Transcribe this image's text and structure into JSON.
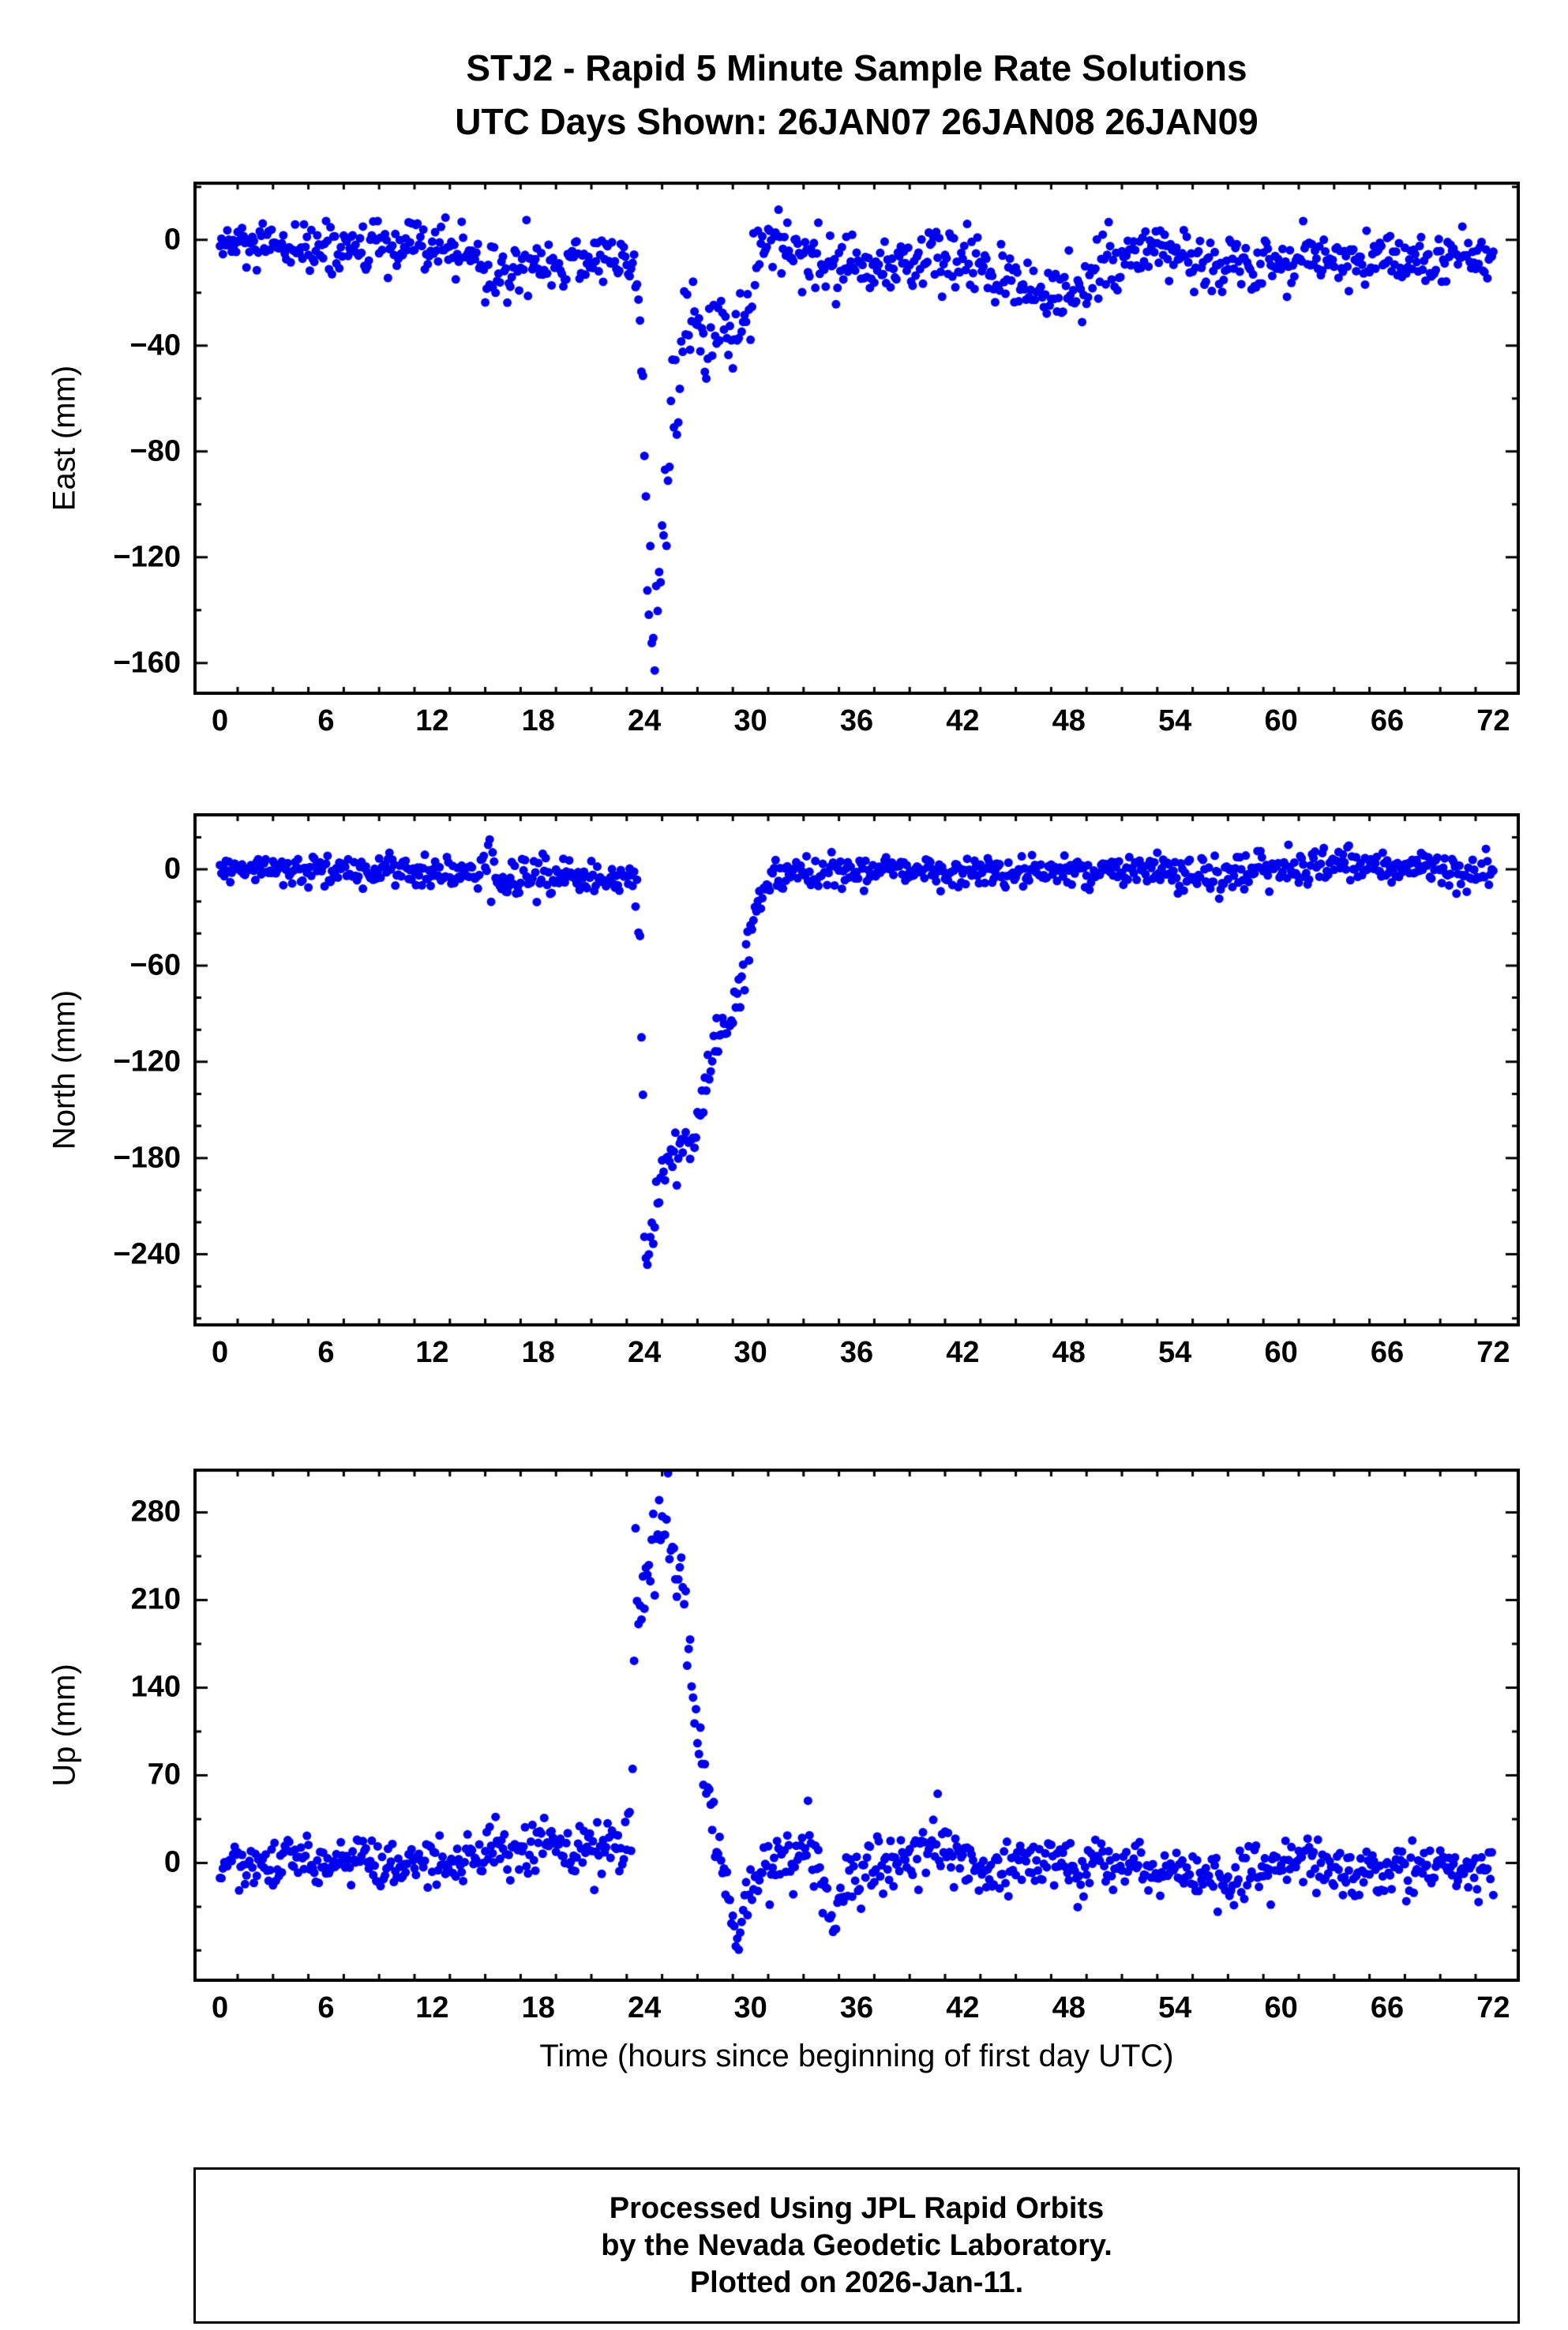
{
  "title": {
    "line1": "STJ2 - Rapid 5 Minute Sample Rate Solutions",
    "line2": "UTC Days Shown:  26JAN07 26JAN08 26JAN09"
  },
  "footer": {
    "line1": "Processed Using JPL Rapid Orbits",
    "line2": "by the Nevada Geodetic Laboratory.",
    "line3": "Plotted on 2026-Jan-11."
  },
  "style": {
    "point_color": "#0000ee",
    "point_radius": 5.5,
    "frame_color": "#000000",
    "frame_width": 4
  },
  "chart_data": {
    "type": "scatter",
    "station": "STJ2",
    "xlabel": "Time (hours since beginning of first day UTC)",
    "xlim": [
      -1.5,
      73.5
    ],
    "xticks": [
      0,
      6,
      12,
      18,
      24,
      30,
      36,
      42,
      48,
      54,
      60,
      66,
      72
    ],
    "x_minor_step": 2,
    "sample_step_hours": 0.08333333,
    "panels": [
      {
        "name": "east",
        "ylabel": "East (mm)",
        "ylim": [
          -172,
          22
        ],
        "yticks": [
          0,
          -40,
          -80,
          -120,
          -160
        ],
        "y_minor_step": 20,
        "envelope": [
          [
            0,
            -2,
            5
          ],
          [
            3,
            -4,
            5
          ],
          [
            6,
            -3,
            5
          ],
          [
            9,
            -4,
            5
          ],
          [
            12,
            -4,
            5
          ],
          [
            14,
            -3,
            5
          ],
          [
            15,
            -14,
            7
          ],
          [
            16.5,
            -11,
            6
          ],
          [
            18,
            -9,
            6
          ],
          [
            20,
            -8,
            5
          ],
          [
            22,
            -7,
            5
          ],
          [
            23.4,
            -8,
            5
          ],
          [
            23.7,
            -15,
            8
          ],
          [
            23.95,
            -60,
            35
          ],
          [
            24.2,
            -120,
            25
          ],
          [
            24.45,
            -155,
            10
          ],
          [
            24.7,
            -150,
            10
          ],
          [
            24.95,
            -125,
            12
          ],
          [
            25.2,
            -95,
            12
          ],
          [
            25.5,
            -70,
            10
          ],
          [
            25.9,
            -55,
            10
          ],
          [
            26.3,
            -38,
            10
          ],
          [
            26.7,
            -30,
            8
          ],
          [
            27.1,
            -40,
            8
          ],
          [
            27.5,
            -42,
            7
          ],
          [
            27.9,
            -35,
            7
          ],
          [
            28.3,
            -30,
            7
          ],
          [
            28.7,
            -37,
            6
          ],
          [
            29.1,
            -35,
            6
          ],
          [
            29.5,
            -30,
            6
          ],
          [
            29.9,
            -22,
            7
          ],
          [
            30.4,
            -10,
            7
          ],
          [
            31,
            -2,
            6
          ],
          [
            31.6,
            2,
            5
          ],
          [
            32.3,
            -5,
            6
          ],
          [
            33,
            -10,
            6
          ],
          [
            34,
            -9,
            6
          ],
          [
            35,
            -11,
            6
          ],
          [
            36,
            -9,
            6
          ],
          [
            37.5,
            -10,
            6
          ],
          [
            39,
            -8,
            6
          ],
          [
            40.5,
            -7,
            6
          ],
          [
            42,
            -10,
            6
          ],
          [
            43.5,
            -12,
            6
          ],
          [
            45,
            -15,
            6
          ],
          [
            46.5,
            -20,
            6
          ],
          [
            48,
            -20,
            6
          ],
          [
            49.5,
            -14,
            6
          ],
          [
            51,
            -6,
            5
          ],
          [
            52.5,
            -5,
            5
          ],
          [
            54,
            -7,
            5
          ],
          [
            56,
            -8,
            5
          ],
          [
            58,
            -9,
            6
          ],
          [
            60,
            -7,
            5
          ],
          [
            62,
            -8,
            5
          ],
          [
            64,
            -7,
            5
          ],
          [
            66,
            -9,
            5
          ],
          [
            68,
            -8,
            5
          ],
          [
            70,
            -8,
            5
          ],
          [
            72,
            -6,
            5
          ]
        ]
      },
      {
        "name": "north",
        "ylabel": "North (mm)",
        "ylim": [
          -285,
          35
        ],
        "yticks": [
          0,
          -60,
          -120,
          -180,
          -240
        ],
        "y_minor_step": 20,
        "envelope": [
          [
            0,
            -1,
            4
          ],
          [
            3,
            0,
            4
          ],
          [
            6,
            -1,
            5
          ],
          [
            9,
            -2,
            5
          ],
          [
            12,
            -1,
            5
          ],
          [
            14,
            -2,
            6
          ],
          [
            15.2,
            3,
            8
          ],
          [
            16,
            -6,
            7
          ],
          [
            17,
            -9,
            7
          ],
          [
            18,
            -2,
            9
          ],
          [
            19,
            -6,
            6
          ],
          [
            20,
            -4,
            5
          ],
          [
            21.5,
            -5,
            5
          ],
          [
            23,
            -5,
            5
          ],
          [
            23.6,
            -12,
            8
          ],
          [
            23.85,
            -120,
            70
          ],
          [
            24.05,
            -250,
            15
          ],
          [
            24.3,
            -240,
            12
          ],
          [
            24.55,
            -215,
            10
          ],
          [
            24.8,
            -200,
            9
          ],
          [
            25.1,
            -185,
            8
          ],
          [
            25.5,
            -177,
            8
          ],
          [
            26,
            -173,
            8
          ],
          [
            26.5,
            -170,
            8
          ],
          [
            26.9,
            -163,
            8
          ],
          [
            27.2,
            -148,
            9
          ],
          [
            27.5,
            -137,
            8
          ],
          [
            27.8,
            -118,
            8
          ],
          [
            28.1,
            -103,
            6
          ],
          [
            28.5,
            -99,
            6
          ],
          [
            28.9,
            -93,
            7
          ],
          [
            29.2,
            -80,
            8
          ],
          [
            29.6,
            -62,
            8
          ],
          [
            30,
            -40,
            8
          ],
          [
            30.4,
            -22,
            7
          ],
          [
            30.8,
            -12,
            6
          ],
          [
            31.3,
            -6,
            5
          ],
          [
            32,
            -3,
            5
          ],
          [
            33,
            -4,
            5
          ],
          [
            34.5,
            -2,
            5
          ],
          [
            36,
            -3,
            5
          ],
          [
            38,
            -1,
            5
          ],
          [
            40,
            -2,
            5
          ],
          [
            42,
            -1,
            5
          ],
          [
            44,
            -2,
            5
          ],
          [
            46,
            -1,
            5
          ],
          [
            48,
            -2,
            5
          ],
          [
            50,
            -1,
            5
          ],
          [
            52,
            1,
            5
          ],
          [
            53.5,
            2,
            6
          ],
          [
            55,
            -3,
            6
          ],
          [
            56.5,
            -4,
            6
          ],
          [
            58,
            -2,
            6
          ],
          [
            60,
            0,
            6
          ],
          [
            62,
            1,
            6
          ],
          [
            64,
            2,
            6
          ],
          [
            66,
            0,
            5
          ],
          [
            68,
            1,
            5
          ],
          [
            70,
            0,
            5
          ],
          [
            72,
            -2,
            5
          ]
        ]
      },
      {
        "name": "up",
        "ylabel": "Up (mm)",
        "ylim": [
          -95,
          315
        ],
        "yticks": [
          0,
          70,
          140,
          210,
          280
        ],
        "y_minor_step": 35,
        "envelope": [
          [
            0,
            -2,
            10
          ],
          [
            2,
            0,
            10
          ],
          [
            4,
            2,
            10
          ],
          [
            6,
            0,
            11
          ],
          [
            8,
            2,
            12
          ],
          [
            10,
            -3,
            11
          ],
          [
            12,
            0,
            11
          ],
          [
            14,
            5,
            12
          ],
          [
            15.5,
            12,
            12
          ],
          [
            17,
            8,
            12
          ],
          [
            18.5,
            12,
            12
          ],
          [
            20,
            6,
            11
          ],
          [
            21.5,
            12,
            12
          ],
          [
            22.8,
            14,
            12
          ],
          [
            23.3,
            25,
            15
          ],
          [
            23.5,
            215,
            30
          ],
          [
            23.8,
            205,
            22
          ],
          [
            24.1,
            215,
            22
          ],
          [
            24.4,
            245,
            22
          ],
          [
            24.7,
            265,
            18
          ],
          [
            25,
            280,
            14
          ],
          [
            25.3,
            272,
            16
          ],
          [
            25.6,
            250,
            16
          ],
          [
            25.9,
            242,
            13
          ],
          [
            26.2,
            222,
            12
          ],
          [
            26.5,
            165,
            22
          ],
          [
            26.8,
            128,
            15
          ],
          [
            27.1,
            98,
            13
          ],
          [
            27.4,
            68,
            11
          ],
          [
            27.7,
            45,
            10
          ],
          [
            28,
            20,
            10
          ],
          [
            28.3,
            0,
            10
          ],
          [
            28.6,
            -20,
            10
          ],
          [
            28.9,
            -45,
            9
          ],
          [
            29.2,
            -58,
            8
          ],
          [
            29.5,
            -48,
            8
          ],
          [
            29.9,
            -28,
            8
          ],
          [
            30.3,
            -12,
            9
          ],
          [
            30.8,
            -2,
            10
          ],
          [
            31.5,
            2,
            10
          ],
          [
            32.5,
            0,
            11
          ],
          [
            33.3,
            15,
            12
          ],
          [
            34,
            -15,
            15
          ],
          [
            34.6,
            -38,
            12
          ],
          [
            35.2,
            -25,
            12
          ],
          [
            36,
            -8,
            11
          ],
          [
            37,
            -4,
            10
          ],
          [
            38,
            4,
            11
          ],
          [
            39,
            2,
            11
          ],
          [
            40,
            12,
            13
          ],
          [
            40.6,
            18,
            14
          ],
          [
            41.4,
            2,
            12
          ],
          [
            42.5,
            4,
            12
          ],
          [
            43.5,
            -6,
            12
          ],
          [
            44.5,
            -10,
            11
          ],
          [
            45.5,
            -4,
            11
          ],
          [
            46.5,
            2,
            12
          ],
          [
            47.5,
            -2,
            11
          ],
          [
            48.5,
            -8,
            10
          ],
          [
            49.5,
            -2,
            10
          ],
          [
            50.5,
            2,
            10
          ],
          [
            51.5,
            4,
            10
          ],
          [
            52.5,
            -4,
            10
          ],
          [
            54,
            -8,
            10
          ],
          [
            55.5,
            -10,
            10
          ],
          [
            57,
            -14,
            11
          ],
          [
            58.5,
            -8,
            10
          ],
          [
            60,
            -6,
            10
          ],
          [
            61.5,
            -2,
            11
          ],
          [
            63,
            -6,
            10
          ],
          [
            64.5,
            -10,
            10
          ],
          [
            66,
            -6,
            10
          ],
          [
            67.5,
            -10,
            10
          ],
          [
            69,
            -6,
            10
          ],
          [
            70.5,
            -8,
            10
          ],
          [
            72,
            -8,
            10
          ]
        ]
      }
    ]
  }
}
